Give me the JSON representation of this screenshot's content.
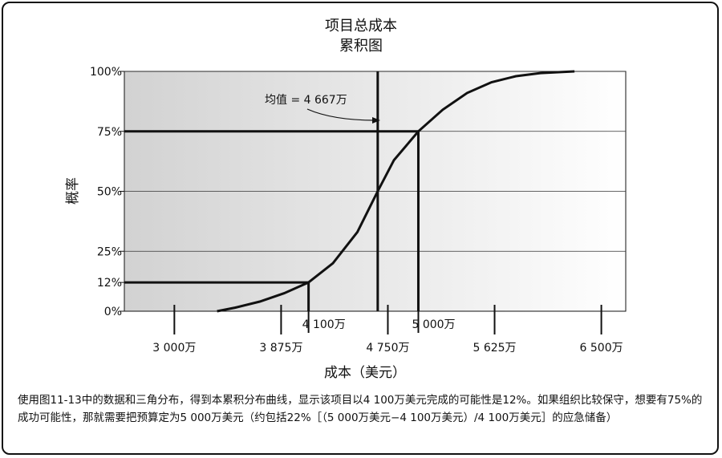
{
  "chart_data": {
    "type": "line",
    "title": "项目总成本",
    "subtitle": "累积图",
    "xlabel": "成本（美元）",
    "ylabel": "概率",
    "y_ticks": [
      "100%",
      "75%",
      "50%",
      "25%",
      "12%",
      "0%"
    ],
    "x_ticks": [
      "3 000万",
      "3 875万",
      "4 750万",
      "5 625万",
      "6 500万"
    ],
    "x_ticks_values": [
      3000,
      3875,
      4750,
      5625,
      6500
    ],
    "xlim": [
      2590,
      6700
    ],
    "ylim": [
      0,
      100
    ],
    "x_unit": "万美元",
    "series": [
      {
        "x": [
          3350,
          3500,
          3700,
          3900,
          4100,
          4300,
          4500,
          4667,
          4800,
          5000,
          5200,
          5400,
          5600,
          5800,
          6000,
          6280
        ],
        "y": [
          0,
          1.5,
          4,
          7.5,
          12,
          20,
          33,
          50,
          63,
          75,
          84,
          91,
          95.5,
          98,
          99.3,
          100
        ]
      }
    ],
    "reference_lines": [
      {
        "x": 4100,
        "y": 12
      },
      {
        "x": 5000,
        "y": 75
      },
      {
        "x": 4667,
        "y": 100
      }
    ],
    "marker_labels": [
      "4 100万",
      "5 000万"
    ],
    "annotation": "均值 = 4 667万",
    "grid": "horizontal at 25%, 50%, 75%, 100%",
    "colors": {
      "line": "#111111",
      "plot_bg_left": "#d2d2d2",
      "plot_bg_right": "#ffffff"
    }
  },
  "caption": "使用图11-13中的数据和三角分布，得到本累积分布曲线，显示该项目以4 100万美元完成的可能性是12%。如果组织比较保守，想要有75%的成功可能性，那就需要把预算定为5 000万美元（约包括22%［（5 000万美元−4 100万美元）/4 100万美元］的应急储备）"
}
